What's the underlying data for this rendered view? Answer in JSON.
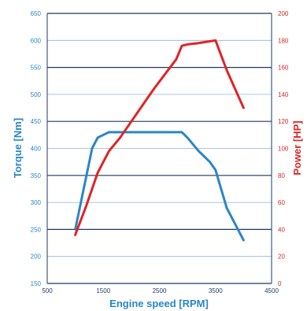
{
  "chart_data": {
    "type": "line",
    "xlabel": "Engine speed [RPM]",
    "ylabel_left": "Torque [Nm]",
    "ylabel_right": "Power [HP]",
    "xlim": [
      500,
      4500
    ],
    "ylim_left": [
      150,
      650
    ],
    "ylim_right": [
      0,
      200
    ],
    "x_ticks": [
      500,
      1500,
      2500,
      3500,
      4500
    ],
    "y_ticks_left": [
      150,
      200,
      250,
      300,
      350,
      400,
      450,
      500,
      550,
      600,
      650
    ],
    "y_ticks_right": [
      0,
      20,
      40,
      60,
      80,
      100,
      120,
      140,
      160,
      180,
      200
    ],
    "grid": true,
    "colors": {
      "torque": "#2a86c6",
      "power": "#e02424",
      "axis": "#1f3a5f",
      "grid_major": "#1f3a5f",
      "grid_minor": "#8fb3d9"
    },
    "series": [
      {
        "axis": "left",
        "x": [
          1000,
          1300,
          1400,
          1500,
          1600,
          2000,
          2500,
          2900,
          3000,
          3200,
          3400,
          3500,
          3700,
          4000
        ],
        "values": [
          250,
          400,
          420,
          425,
          430,
          430,
          430,
          430,
          420,
          395,
          375,
          360,
          290,
          230
        ]
      },
      {
        "axis": "right",
        "x": [
          1000,
          1200,
          1400,
          1600,
          1800,
          2000,
          2200,
          2400,
          2600,
          2800,
          2900,
          3000,
          3200,
          3500,
          3700,
          4000
        ],
        "values": [
          36,
          58,
          82,
          98,
          108,
          120,
          132,
          144,
          155,
          166,
          176,
          177,
          178,
          180,
          158,
          130
        ]
      }
    ]
  }
}
